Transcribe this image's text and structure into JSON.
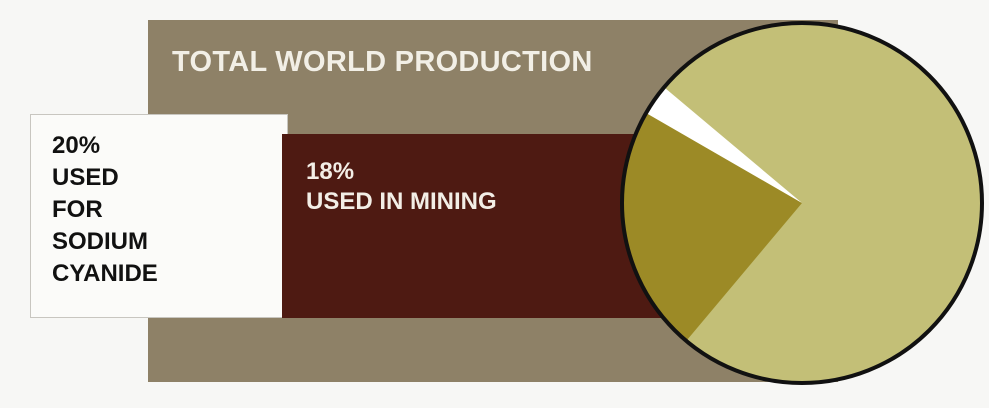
{
  "chart_data": {
    "type": "pie",
    "title": "TOTAL WORLD PRODUCTION",
    "slices": [
      {
        "label": "USED FOR SODIUM CYANIDE",
        "value": 20,
        "display": "20%\nUSED\nFOR\nSODIUM\nCYANIDE",
        "color": "#ffffff"
      },
      {
        "label": "USED IN MINING",
        "value": 18,
        "display": "18%\nUSED IN MINING",
        "color": "#9c8a26"
      }
    ],
    "remainder_color": "#c3bf77",
    "panel_colors": {
      "band": "#8e8167",
      "white_panel": "#fbfbf9",
      "mining_panel": "#4e1a12"
    }
  }
}
